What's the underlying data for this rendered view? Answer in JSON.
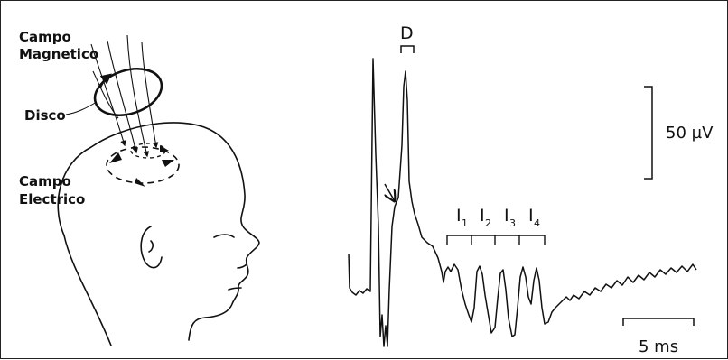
{
  "labels": {
    "campo_magnetico_1": "Campo",
    "campo_magnetico_2": "Magnetico",
    "disco": "Disco",
    "campo_electrico_1": "Campo",
    "campo_electrico_2": "Electrico"
  },
  "waves": {
    "d_wave": "D",
    "i1": "I",
    "i2": "I",
    "i3": "I",
    "i4": "I",
    "i1_sub": "1",
    "i2_sub": "2",
    "i3_sub": "3",
    "i4_sub": "4"
  },
  "scale": {
    "amplitude": "50 µV",
    "time": "5 ms"
  },
  "colors": {
    "ink": "#111111",
    "background": "#ffffff"
  }
}
